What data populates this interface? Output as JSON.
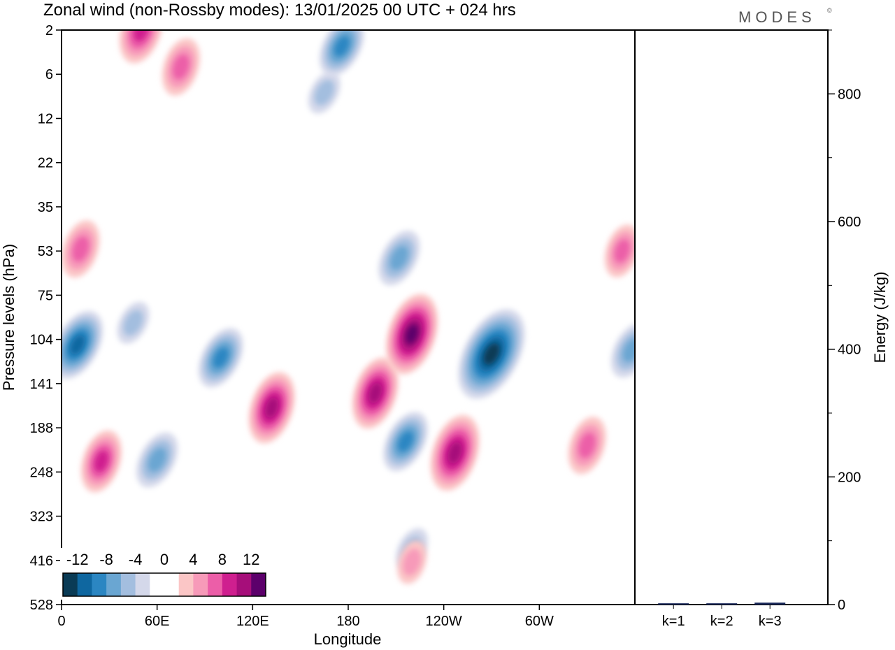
{
  "header": {
    "title": "Zonal wind (non-Rossby modes):  13/01/2025  00 UTC  + 024 hrs",
    "brand": "MODES",
    "brand_mark": "©"
  },
  "colors": {
    "neg_5": "#0a3b55",
    "neg_4": "#0f67a0",
    "neg_3": "#2b86c2",
    "neg_2": "#6aa6d2",
    "neg_1": "#a3bedf",
    "neg_0": "#d4d8ea",
    "zero": "#ffffff",
    "pos_0": "#fbc6c6",
    "pos_1": "#f79ab9",
    "pos_2": "#ec5ea8",
    "pos_3": "#cf1f8f",
    "pos_4": "#a60e7a",
    "pos_5": "#5c006b"
  },
  "chart_data": [
    {
      "type": "heatmap",
      "title": "Zonal wind (non-Rossby modes):  13/01/2025  00 UTC  + 024 hrs",
      "xlabel": "Longitude",
      "ylabel": "Pressure levels (hPa)",
      "x_ticks": [
        "0",
        "60E",
        "120E",
        "180",
        "120W",
        "60W"
      ],
      "x_tick_degrees": [
        0,
        60,
        120,
        180,
        240,
        300
      ],
      "xlim": [
        0,
        360
      ],
      "y_ticks": [
        "2",
        "6",
        "12",
        "22",
        "35",
        "53",
        "75",
        "104",
        "141",
        "188",
        "248",
        "323",
        "416",
        "528"
      ],
      "colorbar": {
        "labels": [
          "-12",
          "-8",
          "-4",
          "0",
          "4",
          "8",
          "12"
        ],
        "levels": [
          -12,
          -10,
          -8,
          -6,
          -4,
          -2,
          0,
          2,
          4,
          6,
          8,
          10,
          12
        ]
      },
      "features": [
        {
          "sign": "neg",
          "lon": 10,
          "level": 108,
          "peak": -9
        },
        {
          "sign": "neg",
          "lon": 45,
          "level": 92,
          "peak": -3
        },
        {
          "sign": "neg",
          "lon": 60,
          "level": 230,
          "peak": -6
        },
        {
          "sign": "neg",
          "lon": 100,
          "level": 118,
          "peak": -7
        },
        {
          "sign": "neg",
          "lon": 165,
          "level": 8,
          "peak": -3
        },
        {
          "sign": "neg",
          "lon": 176,
          "level": 3,
          "peak": -7
        },
        {
          "sign": "neg",
          "lon": 212,
          "level": 56,
          "peak": -6
        },
        {
          "sign": "neg",
          "lon": 216,
          "level": 205,
          "peak": -7
        },
        {
          "sign": "neg",
          "lon": 220,
          "level": 390,
          "peak": -3
        },
        {
          "sign": "neg",
          "lon": 270,
          "level": 115,
          "peak": -14
        },
        {
          "sign": "neg",
          "lon": 358,
          "level": 112,
          "peak": -6
        },
        {
          "sign": "pos",
          "lon": 12,
          "level": 52,
          "peak": 6
        },
        {
          "sign": "pos",
          "lon": 25,
          "level": 232,
          "peak": 7
        },
        {
          "sign": "pos",
          "lon": 50,
          "level": 2,
          "peak": 8
        },
        {
          "sign": "pos",
          "lon": 75,
          "level": 5,
          "peak": 6
        },
        {
          "sign": "pos",
          "lon": 132,
          "level": 165,
          "peak": 9
        },
        {
          "sign": "pos",
          "lon": 197,
          "level": 150,
          "peak": 9
        },
        {
          "sign": "pos",
          "lon": 220,
          "level": 100,
          "peak": 11
        },
        {
          "sign": "pos",
          "lon": 247,
          "level": 220,
          "peak": 10
        },
        {
          "sign": "pos",
          "lon": 220,
          "level": 420,
          "peak": 3
        },
        {
          "sign": "pos",
          "lon": 330,
          "level": 210,
          "peak": 6
        },
        {
          "sign": "pos",
          "lon": 352,
          "level": 53,
          "peak": 5
        }
      ]
    },
    {
      "type": "bar",
      "ylabel": "Energy (J/kg)",
      "categories": [
        "k=1",
        "k=2",
        "k=3"
      ],
      "values": [
        2,
        2,
        3
      ],
      "ylim": [
        0,
        900
      ],
      "y_ticks": [
        0,
        200,
        400,
        600,
        800
      ],
      "y_minor_ticks": [
        100,
        300,
        500,
        700,
        900
      ]
    }
  ]
}
